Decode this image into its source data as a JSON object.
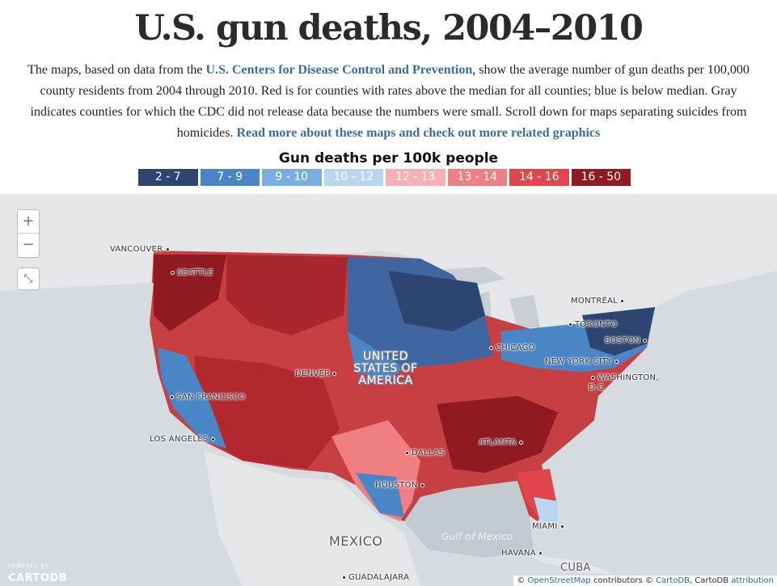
{
  "page": {
    "title": "U.S. gun deaths, 2004–2010",
    "intro_part1": "The maps, based on data from the ",
    "intro_link1": "U.S. Centers for Disease Control and Prevention",
    "intro_part2": ", show the average number of gun deaths per 100,000 county residents from 2004 through 2010. Red is for counties with rates above the median for all counties; blue is below median. Gray indicates counties for which the CDC did not release data because the numbers were small. Scroll down for maps separating suicides from homicides. ",
    "intro_link2": "Read more about these maps and check out more related graphics"
  },
  "legend": {
    "title": "Gun deaths per 100k people",
    "bins": [
      {
        "label": "2 - 7",
        "color": "#2e4571"
      },
      {
        "label": "7 - 9",
        "color": "#4a86c5"
      },
      {
        "label": "9 - 10",
        "color": "#7aaee0"
      },
      {
        "label": "10 - 12",
        "color": "#b9d6f0"
      },
      {
        "label": "12 - 13",
        "color": "#f6b0b3"
      },
      {
        "label": "13 - 14",
        "color": "#ef7f83"
      },
      {
        "label": "14 - 16",
        "color": "#e0464c"
      },
      {
        "label": "16 - 50",
        "color": "#8f1a21"
      }
    ]
  },
  "map": {
    "zoom_in": "+",
    "zoom_out": "−",
    "fullscreen_icon": "⤡",
    "country_label": "UNITED STATES OF AMERICA",
    "cities": {
      "vancouver": "VANCOUVER",
      "seattle": "SEATTLE",
      "san_francisco": "SAN FRANCISCO",
      "los_angeles": "LOS ANGELES",
      "denver": "DENVER",
      "dallas": "DALLAS",
      "houston": "HOUSTON",
      "chicago": "CHICAGO",
      "atlanta": "ATLANTA",
      "toronto": "TORONTO",
      "montreal": "MONTRÉAL",
      "boston": "BOSTON",
      "new_york": "NEW YORK CITY",
      "washington": "WASHINGTON, D.C.",
      "miami": "MIAMI",
      "havana": "HAVANA",
      "guadalajara": "GUADALAJARA",
      "mexico": "MEXICO",
      "cuba": "CUBA",
      "gulf": "Gulf of Mexico"
    },
    "powered_by": "POWERED BY",
    "logo": "CARTODB",
    "attribution": {
      "prefix": "© ",
      "osm": "OpenStreetMap",
      "mid1": " contributors © ",
      "carto": "CartoDB",
      "mid2": ", CartoDB ",
      "attr_link": "attribution"
    }
  }
}
